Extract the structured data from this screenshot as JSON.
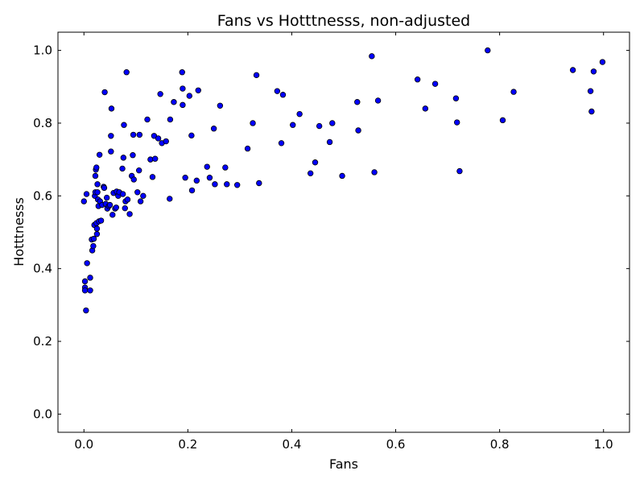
{
  "chart_data": {
    "type": "scatter",
    "title": "Fans vs Hotttnesss, non-adjusted",
    "xlabel": "Fans",
    "ylabel": "Hotttnesss",
    "xlim": [
      -0.05,
      1.05
    ],
    "ylim": [
      -0.05,
      1.05
    ],
    "xticks": [
      "0.0",
      "0.2",
      "0.4",
      "0.6",
      "0.8",
      "1.0"
    ],
    "yticks": [
      "0.0",
      "0.2",
      "0.4",
      "0.6",
      "0.8",
      "1.0"
    ],
    "grid": false,
    "marker_color": "#0000ff",
    "marker_edge_color": "#000000",
    "points": [
      [
        0.0,
        0.585
      ],
      [
        0.005,
        0.605
      ],
      [
        0.002,
        0.365
      ],
      [
        0.002,
        0.348
      ],
      [
        0.002,
        0.34
      ],
      [
        0.006,
        0.415
      ],
      [
        0.004,
        0.285
      ],
      [
        0.012,
        0.375
      ],
      [
        0.012,
        0.34
      ],
      [
        0.015,
        0.48
      ],
      [
        0.016,
        0.45
      ],
      [
        0.018,
        0.462
      ],
      [
        0.019,
        0.482
      ],
      [
        0.02,
        0.52
      ],
      [
        0.021,
        0.6
      ],
      [
        0.022,
        0.61
      ],
      [
        0.022,
        0.655
      ],
      [
        0.023,
        0.672
      ],
      [
        0.024,
        0.678
      ],
      [
        0.024,
        0.525
      ],
      [
        0.025,
        0.51
      ],
      [
        0.025,
        0.495
      ],
      [
        0.026,
        0.632
      ],
      [
        0.026,
        0.61
      ],
      [
        0.027,
        0.59
      ],
      [
        0.028,
        0.572
      ],
      [
        0.029,
        0.53
      ],
      [
        0.03,
        0.713
      ],
      [
        0.031,
        0.585
      ],
      [
        0.033,
        0.532
      ],
      [
        0.035,
        0.575
      ],
      [
        0.038,
        0.625
      ],
      [
        0.039,
        0.622
      ],
      [
        0.04,
        0.885
      ],
      [
        0.042,
        0.578
      ],
      [
        0.044,
        0.595
      ],
      [
        0.045,
        0.565
      ],
      [
        0.048,
        0.572
      ],
      [
        0.05,
        0.575
      ],
      [
        0.052,
        0.722
      ],
      [
        0.052,
        0.765
      ],
      [
        0.053,
        0.84
      ],
      [
        0.055,
        0.548
      ],
      [
        0.057,
        0.608
      ],
      [
        0.06,
        0.565
      ],
      [
        0.062,
        0.568
      ],
      [
        0.063,
        0.612
      ],
      [
        0.066,
        0.6
      ],
      [
        0.068,
        0.61
      ],
      [
        0.074,
        0.675
      ],
      [
        0.075,
        0.605
      ],
      [
        0.076,
        0.705
      ],
      [
        0.077,
        0.795
      ],
      [
        0.079,
        0.566
      ],
      [
        0.08,
        0.585
      ],
      [
        0.082,
        0.94
      ],
      [
        0.084,
        0.59
      ],
      [
        0.088,
        0.55
      ],
      [
        0.092,
        0.655
      ],
      [
        0.094,
        0.712
      ],
      [
        0.095,
        0.768
      ],
      [
        0.096,
        0.645
      ],
      [
        0.103,
        0.61
      ],
      [
        0.106,
        0.67
      ],
      [
        0.107,
        0.768
      ],
      [
        0.109,
        0.585
      ],
      [
        0.114,
        0.6
      ],
      [
        0.122,
        0.81
      ],
      [
        0.128,
        0.7
      ],
      [
        0.132,
        0.652
      ],
      [
        0.135,
        0.765
      ],
      [
        0.137,
        0.702
      ],
      [
        0.143,
        0.758
      ],
      [
        0.147,
        0.88
      ],
      [
        0.15,
        0.745
      ],
      [
        0.158,
        0.75
      ],
      [
        0.165,
        0.592
      ],
      [
        0.166,
        0.81
      ],
      [
        0.173,
        0.858
      ],
      [
        0.189,
        0.94
      ],
      [
        0.19,
        0.895
      ],
      [
        0.19,
        0.85
      ],
      [
        0.195,
        0.65
      ],
      [
        0.203,
        0.875
      ],
      [
        0.207,
        0.766
      ],
      [
        0.208,
        0.615
      ],
      [
        0.217,
        0.642
      ],
      [
        0.22,
        0.89
      ],
      [
        0.237,
        0.68
      ],
      [
        0.242,
        0.65
      ],
      [
        0.25,
        0.785
      ],
      [
        0.252,
        0.632
      ],
      [
        0.262,
        0.848
      ],
      [
        0.272,
        0.678
      ],
      [
        0.275,
        0.632
      ],
      [
        0.295,
        0.63
      ],
      [
        0.315,
        0.73
      ],
      [
        0.325,
        0.8
      ],
      [
        0.332,
        0.932
      ],
      [
        0.337,
        0.635
      ],
      [
        0.372,
        0.888
      ],
      [
        0.38,
        0.745
      ],
      [
        0.383,
        0.878
      ],
      [
        0.402,
        0.795
      ],
      [
        0.415,
        0.825
      ],
      [
        0.436,
        0.662
      ],
      [
        0.445,
        0.692
      ],
      [
        0.453,
        0.792
      ],
      [
        0.473,
        0.748
      ],
      [
        0.478,
        0.8
      ],
      [
        0.497,
        0.655
      ],
      [
        0.526,
        0.858
      ],
      [
        0.528,
        0.78
      ],
      [
        0.554,
        0.984
      ],
      [
        0.559,
        0.665
      ],
      [
        0.566,
        0.862
      ],
      [
        0.642,
        0.92
      ],
      [
        0.657,
        0.84
      ],
      [
        0.676,
        0.908
      ],
      [
        0.716,
        0.868
      ],
      [
        0.718,
        0.802
      ],
      [
        0.723,
        0.668
      ],
      [
        0.777,
        1.0
      ],
      [
        0.806,
        0.808
      ],
      [
        0.827,
        0.886
      ],
      [
        0.941,
        0.946
      ],
      [
        0.975,
        0.888
      ],
      [
        0.977,
        0.832
      ],
      [
        0.981,
        0.942
      ],
      [
        0.998,
        0.968
      ]
    ]
  }
}
